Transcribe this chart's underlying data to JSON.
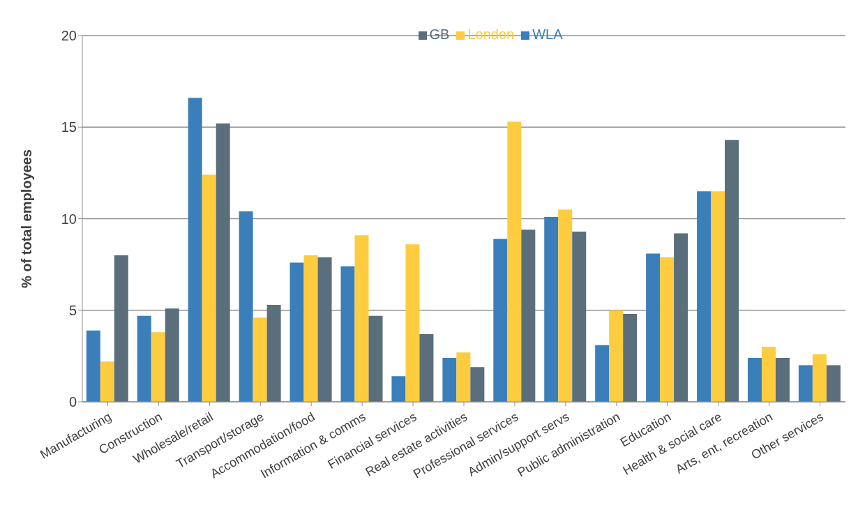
{
  "chart_data": {
    "type": "bar",
    "ylabel": "% of total employees",
    "categories": [
      "Manufacturing",
      "Construction",
      "Wholesale/retail",
      "Transport/storage",
      "Accommodation/food",
      "Information & comms",
      "Financial services",
      "Real estate activities",
      "Professional services",
      "Admin/support servs",
      "Public administration",
      "Education",
      "Health & social care",
      "Arts, ent, recreation",
      "Other services"
    ],
    "series": [
      {
        "name": "WLA",
        "color": "#3a7fba",
        "values": [
          3.9,
          4.7,
          16.6,
          10.4,
          7.6,
          7.4,
          1.4,
          2.4,
          8.9,
          10.1,
          3.1,
          8.1,
          11.5,
          2.4,
          2.0
        ]
      },
      {
        "name": "London",
        "color": "#fdcc3f",
        "values": [
          2.2,
          3.8,
          12.4,
          4.6,
          8.0,
          9.1,
          8.6,
          2.7,
          15.3,
          10.5,
          5.0,
          7.9,
          11.5,
          3.0,
          2.6
        ]
      },
      {
        "name": "GB",
        "color": "#5a6e7b",
        "values": [
          8.0,
          5.1,
          15.2,
          5.3,
          7.9,
          4.7,
          3.7,
          1.9,
          9.4,
          9.3,
          4.8,
          9.2,
          14.3,
          2.4,
          2.0
        ]
      }
    ],
    "ylim": [
      0,
      20
    ],
    "yticks": [
      0,
      5,
      10,
      15,
      20
    ],
    "grid": "y",
    "legend": "top"
  }
}
